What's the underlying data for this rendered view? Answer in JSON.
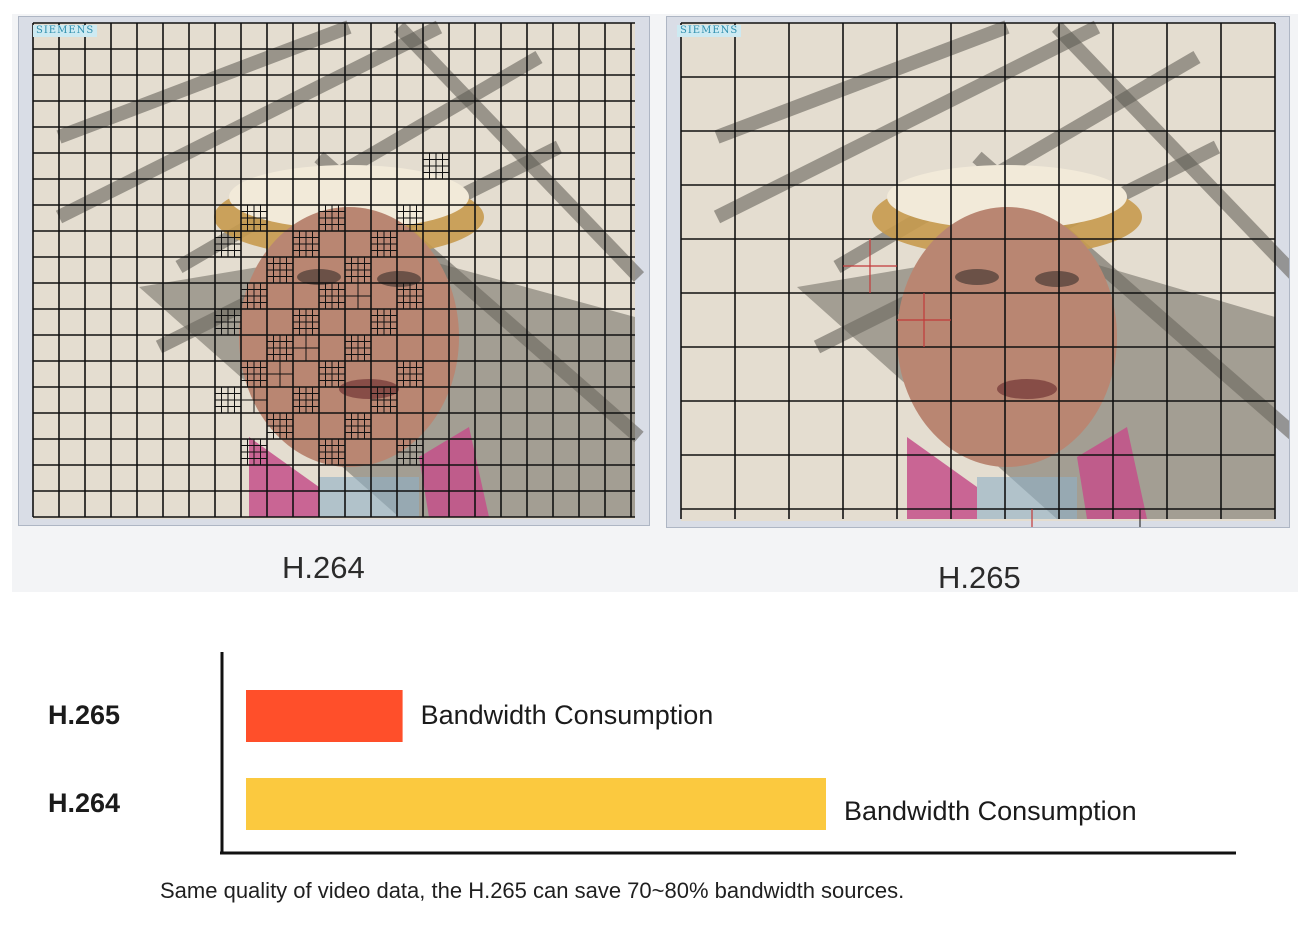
{
  "panels": [
    {
      "brand": "SIEMENS",
      "caption": "H.264"
    },
    {
      "brand": "SIEMENS",
      "caption": "H.265"
    }
  ],
  "chart_data": {
    "type": "bar",
    "orientation": "horizontal",
    "categories": [
      "H.265",
      "H.264"
    ],
    "series": [
      {
        "values": [
          27,
          100
        ],
        "bar_labels": [
          "Bandwidth Consumption",
          "Bandwidth Consumption"
        ]
      }
    ],
    "colors": [
      "#ff4f2a",
      "#fbc93f"
    ],
    "grid": false,
    "legend": "none",
    "footnote": "Same quality of video data, the H.265 can save 70~80% bandwidth sources."
  }
}
